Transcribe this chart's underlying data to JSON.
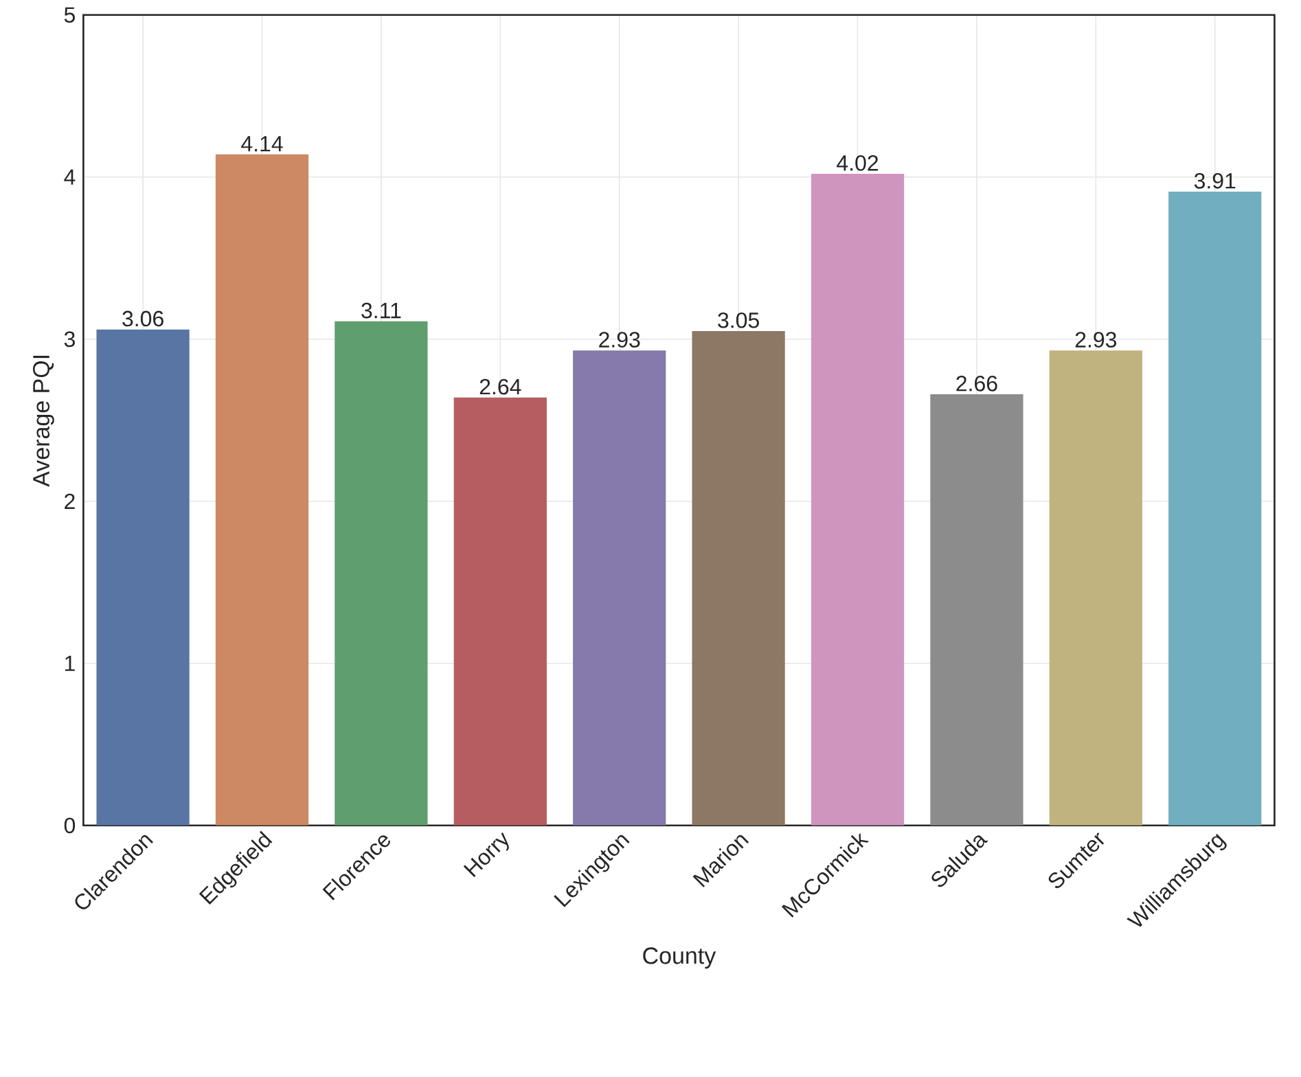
{
  "chart_data": {
    "type": "bar",
    "xlabel": "County",
    "ylabel": "Average PQI",
    "categories": [
      "Clarendon",
      "Edgefield",
      "Florence",
      "Horry",
      "Lexington",
      "Marion",
      "McCormick",
      "Saluda",
      "Sumter",
      "Williamsburg"
    ],
    "values": [
      3.06,
      4.14,
      3.11,
      2.64,
      2.93,
      3.05,
      4.02,
      2.66,
      2.93,
      3.91
    ],
    "colors": [
      "#5875a4",
      "#cc8963",
      "#5f9e6e",
      "#b55d60",
      "#857aab",
      "#8d7866",
      "#d095bf",
      "#8c8c8c",
      "#c1b37f",
      "#71aec0"
    ],
    "ylim": [
      0,
      5
    ],
    "yticks": [
      0,
      1,
      2,
      3,
      4,
      5
    ],
    "grid": true,
    "data_labels": true
  }
}
